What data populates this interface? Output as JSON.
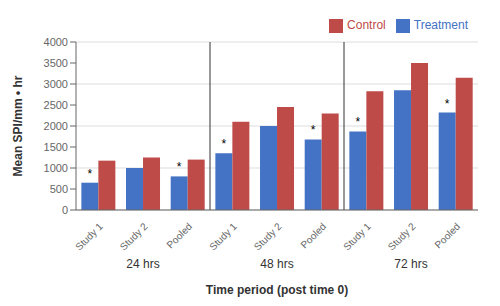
{
  "chart_data": {
    "type": "bar",
    "categories": [
      "Study 1",
      "Study 2",
      "Pooled",
      "Study 1",
      "Study 2",
      "Pooled",
      "Study 1",
      "Study 2",
      "Pooled"
    ],
    "groups": [
      "24 hrs",
      "48 hrs",
      "72 hrs"
    ],
    "series": [
      {
        "name": "Treatment",
        "color": "#4472C4",
        "values": [
          650,
          1000,
          800,
          1350,
          2000,
          1680,
          1870,
          2850,
          2320
        ]
      },
      {
        "name": "Control",
        "color": "#BE4B48",
        "values": [
          1175,
          1250,
          1200,
          2100,
          2450,
          2300,
          2830,
          3500,
          3150
        ]
      }
    ],
    "xlabel": "Time period (post time 0)",
    "ylabel": "Mean SPI/mm • hr",
    "ylim": [
      0,
      4000
    ],
    "yticks": [
      0,
      500,
      1000,
      1500,
      2000,
      2500,
      3000,
      3500,
      4000
    ],
    "grid": true,
    "legend": "upper right",
    "annotations": [
      {
        "text": "*",
        "series": "Treatment",
        "index": 0
      },
      {
        "text": "*",
        "series": "Treatment",
        "index": 2
      },
      {
        "text": "*",
        "series": "Treatment",
        "index": 3
      },
      {
        "text": "*",
        "series": "Treatment",
        "index": 5
      },
      {
        "text": "*",
        "series": "Treatment",
        "index": 6
      },
      {
        "text": "*",
        "series": "Treatment",
        "index": 8
      }
    ]
  }
}
